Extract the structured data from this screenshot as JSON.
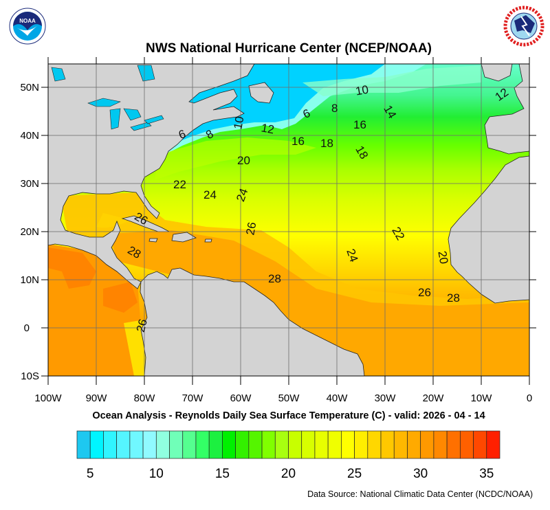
{
  "header": {
    "title": "NWS National Hurricane Center (NCEP/NOAA)",
    "left_logo": {
      "icon": "noaa-logo-icon",
      "lettering": "NOAA"
    },
    "right_logo": {
      "icon": "nws-logo-icon",
      "lettering": "NATIONAL WEATHER SERVICE"
    }
  },
  "map": {
    "subtitle": "Ocean Analysis - Reynolds Daily Sea Surface Temperature (C) - valid: 2026 - 04 - 14",
    "lat_labels": [
      "50N",
      "40N",
      "30N",
      "20N",
      "10N",
      "0",
      "10S"
    ],
    "lon_labels": [
      "100W",
      "90W",
      "80W",
      "70W",
      "60W",
      "50W",
      "40W",
      "30W",
      "20W",
      "10W",
      "0"
    ],
    "land_color": "#d3d3d3",
    "contour_labels": [
      "10",
      "12",
      "8",
      "6",
      "14",
      "16",
      "16",
      "18",
      "18",
      "20",
      "22",
      "24",
      "24",
      "26",
      "22",
      "28",
      "24",
      "20",
      "28",
      "26",
      "28",
      "26",
      "12",
      "10",
      "8",
      "6",
      "26"
    ]
  },
  "colorbar": {
    "unit": "C",
    "range": [
      4,
      36
    ],
    "labels": [
      "5",
      "10",
      "15",
      "20",
      "25",
      "30",
      "35"
    ],
    "colors": [
      "#1ec8f0",
      "#00f5ff",
      "#30f5ff",
      "#55f5ff",
      "#70f8ff",
      "#90faff",
      "#90ffe0",
      "#70ffb8",
      "#55ff90",
      "#33ff66",
      "#1cf040",
      "#00f000",
      "#33f000",
      "#55f500",
      "#80ff00",
      "#a8ff10",
      "#c8ff00",
      "#d8ff00",
      "#e8ff00",
      "#f0ff00",
      "#ffff00",
      "#ffee00",
      "#ffd700",
      "#ffc800",
      "#ffb800",
      "#ffaa00",
      "#ff9900",
      "#ff8800",
      "#ff7000",
      "#ff6000",
      "#ff4800",
      "#ff2000"
    ]
  },
  "footer": {
    "source": "Data Source: National Climatic Data Center (NCDC/NOAA)"
  }
}
